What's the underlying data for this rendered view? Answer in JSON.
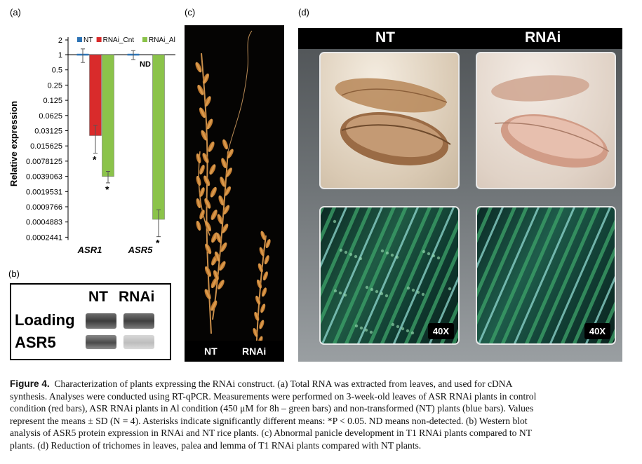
{
  "figure": {
    "panel_labels": {
      "a": "(a)",
      "b": "(b)",
      "c": "(c)",
      "d": "(d)"
    },
    "caption_title": "Figure 4.",
    "caption_lines": [
      "Characterization of plants expressing the RNAi construct. (a) Total RNA was extracted from leaves, and used for cDNA",
      "synthesis. Analyses were conducted using RT-qPCR. Measurements were performed on 3-week-old leaves of ASR RNAi plants in control",
      "condition (red bars), ASR RNAi plants in Al condition (450 μM for 8h – green bars) and non-transformed (NT) plants (blue bars). Values",
      "represent the means ± SD (N = 4). Asterisks indicate significantly different means: *P < 0.05. ND means non-detected. (b) Western blot",
      "analysis of ASR5 protein expression in RNAi and NT rice plants. (c) Abnormal panicle development in T1 RNAi plants compared to NT",
      "plants. (d) Reduction of trichomes in leaves, palea and lemma of T1 RNAi plants compared with NT plants."
    ]
  },
  "chart_data": {
    "type": "bar",
    "ylabel": "Relative expression",
    "yscale": "log2",
    "yticks": [
      "1",
      "0.5",
      "0.25",
      "0.125",
      "0.0625",
      "0.03125",
      "0.015625",
      "0.0078125",
      "0.0039063",
      "0.0019531",
      "0.0009766",
      "0.0004883",
      "0.0002441"
    ],
    "ytop_label": "2",
    "ylim": [
      0.0002441,
      2
    ],
    "categories": [
      "ASR1",
      "ASR5"
    ],
    "series": [
      {
        "name": "NT",
        "color": "#2e74b5",
        "values": [
          1,
          1
        ],
        "err": [
          0.3,
          0.2
        ]
      },
      {
        "name": "RNAi_Cnt",
        "color": "#d92b2b",
        "values": [
          0.025,
          null
        ],
        "err": [
          0.015,
          null
        ]
      },
      {
        "name": "RNAi_Al",
        "color": "#8bc34a",
        "values": [
          0.0039,
          0.00055
        ],
        "err": [
          0.001,
          0.0003
        ]
      }
    ],
    "annotations": {
      "nd": "ND",
      "asterisk": "*"
    },
    "legend_position": "top"
  },
  "blot": {
    "columns": [
      "NT",
      "RNAi"
    ],
    "rows": [
      "Loading",
      "ASR5"
    ]
  },
  "panicle": {
    "labels": [
      "NT",
      "RNAi"
    ]
  },
  "trichome": {
    "columns": [
      "NT",
      "RNAi"
    ],
    "magnification": "40X"
  }
}
